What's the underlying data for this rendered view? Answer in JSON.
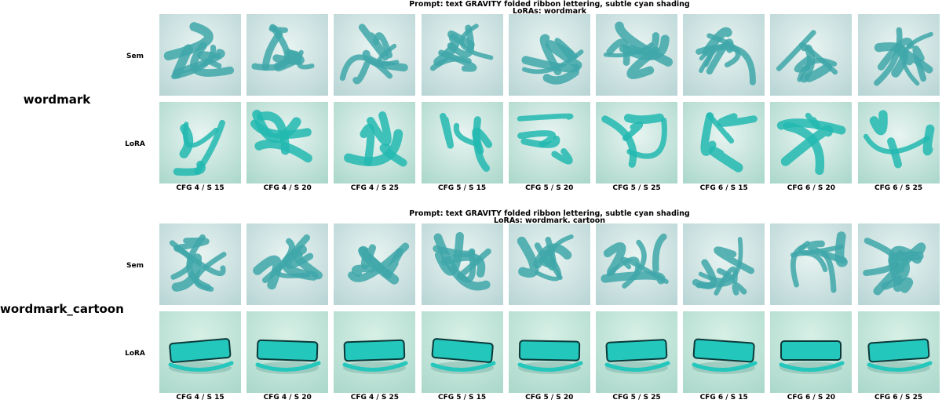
{
  "columns": [
    "CFG 4 / S 15",
    "CFG 4 / S 20",
    "CFG 4 / S 25",
    "CFG 5 / S 15",
    "CFG 5 / S 20",
    "CFG 5 / S 25",
    "CFG 6 / S 15",
    "CFG 6 / S 20",
    "CFG 6 / S 25"
  ],
  "rows": [
    "Sem",
    "LoRA"
  ],
  "groups": [
    {
      "label": "wordmark",
      "prompt_line1": "Prompt: text GRAVITY folded ribbon lettering, subtle cyan shading",
      "prompt_line2": "LoRAs: wordmark"
    },
    {
      "label": "wordmark_cartoon",
      "prompt_line1": "Prompt: text GRAVITY folded ribbon lettering, subtle cyan shading",
      "prompt_line2": "LoRAs: wordmark. cartoon"
    }
  ],
  "colors": {
    "sem_bg": "#b6d3d4",
    "sem_ribbon": "#3fa7a9",
    "lora_bg": "#a8d6c9",
    "lora_ribbon": "#22b8b0",
    "cartoon_letter": "#24c7bc"
  }
}
